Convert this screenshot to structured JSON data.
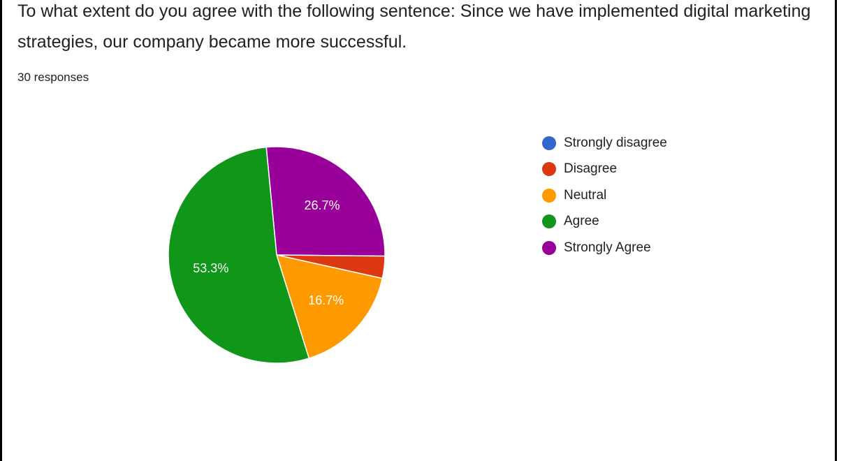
{
  "question": {
    "title": "To what extent do you agree with the following sentence: Since we have implemented digital marketing strategies, our company became more successful.",
    "responses": "30 responses"
  },
  "chart_data": {
    "type": "pie",
    "categories": [
      "Strongly disagree",
      "Disagree",
      "Neutral",
      "Agree",
      "Strongly Agree"
    ],
    "values": [
      0,
      3.3,
      16.7,
      53.3,
      26.7
    ],
    "labels": [
      "",
      "",
      "16.7%",
      "53.3%",
      "26.7%"
    ],
    "colors": [
      "#3366cc",
      "#dc3912",
      "#ff9900",
      "#109618",
      "#990099"
    ],
    "legend_position": "right"
  }
}
